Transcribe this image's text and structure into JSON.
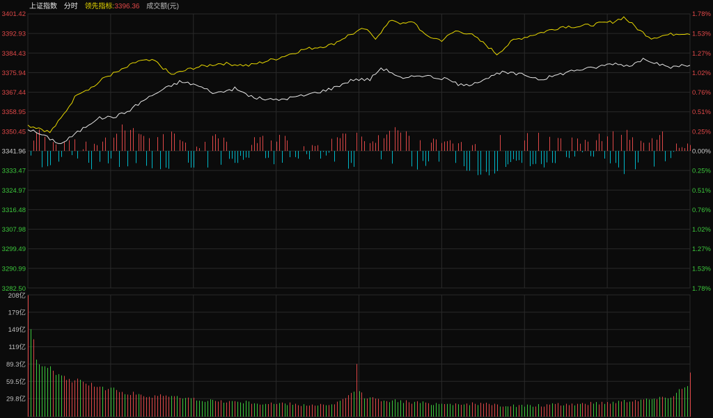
{
  "header": {
    "index_name": "上证指数",
    "period": "分时",
    "indicator_label": "领先指标:",
    "indicator_value": "3396.36",
    "volume_label": "成交额(元)"
  },
  "colors": {
    "background": "#0b0b0b",
    "grid": "#2a2a2a",
    "up": "#e04848",
    "down": "#00b8c8",
    "neutral": "#cfcfcf",
    "index_line": "#e8e8e8",
    "lead_line": "#e8d800",
    "volume_up": "#e04848",
    "volume_down": "#3cc83c",
    "text_gray": "#bdbdbd"
  },
  "chart_data": [
    {
      "type": "line",
      "title": "上证指数 分时",
      "baseline": 3341.96,
      "ylim": [
        3282.5,
        3401.42
      ],
      "y_ticks_left": [
        "3401.42",
        "3392.93",
        "3384.43",
        "3375.94",
        "3367.44",
        "3358.95",
        "3350.45",
        "3341.96",
        "3333.47",
        "3324.97",
        "3316.48",
        "3307.98",
        "3299.49",
        "3290.99",
        "3282.50"
      ],
      "y_ticks_right": [
        "1.78%",
        "1.53%",
        "1.27%",
        "1.02%",
        "0.76%",
        "0.51%",
        "0.25%",
        "0.00%",
        "0.25%",
        "0.51%",
        "0.76%",
        "1.02%",
        "1.27%",
        "1.53%",
        "1.78%"
      ],
      "n_points": 241,
      "series": [
        {
          "name": "上证指数",
          "keyframes": [
            [
              0,
              3351.5
            ],
            [
              5,
              3349
            ],
            [
              12,
              3345
            ],
            [
              18,
              3350
            ],
            [
              25,
              3356
            ],
            [
              32,
              3357
            ],
            [
              36,
              3359
            ],
            [
              42,
              3364
            ],
            [
              48,
              3368
            ],
            [
              55,
              3372
            ],
            [
              60,
              3371
            ],
            [
              68,
              3367
            ],
            [
              75,
              3369
            ],
            [
              82,
              3365
            ],
            [
              90,
              3364
            ],
            [
              100,
              3366
            ],
            [
              110,
              3369
            ],
            [
              118,
              3373
            ],
            [
              124,
              3373
            ],
            [
              128,
              3378
            ],
            [
              132,
              3376
            ],
            [
              136,
              3373
            ],
            [
              142,
              3375
            ],
            [
              152,
              3373
            ],
            [
              158,
              3370
            ],
            [
              165,
              3373
            ],
            [
              172,
              3376
            ],
            [
              180,
              3375
            ],
            [
              186,
              3373
            ],
            [
              192,
              3375
            ],
            [
              198,
              3377
            ],
            [
              205,
              3378
            ],
            [
              212,
              3380
            ],
            [
              218,
              3379
            ],
            [
              224,
              3382
            ],
            [
              228,
              3380
            ],
            [
              232,
              3378
            ],
            [
              236,
              3379
            ],
            [
              240,
              3379
            ]
          ]
        },
        {
          "name": "领先指标",
          "keyframes": [
            [
              0,
              3353
            ],
            [
              4,
              3352
            ],
            [
              8,
              3350
            ],
            [
              12,
              3356
            ],
            [
              18,
              3367
            ],
            [
              24,
              3370
            ],
            [
              28,
              3374
            ],
            [
              34,
              3377
            ],
            [
              40,
              3381
            ],
            [
              46,
              3381
            ],
            [
              52,
              3375
            ],
            [
              60,
              3378
            ],
            [
              70,
              3380
            ],
            [
              80,
              3379
            ],
            [
              90,
              3382
            ],
            [
              100,
              3386
            ],
            [
              110,
              3388
            ],
            [
              116,
              3392
            ],
            [
              122,
              3395
            ],
            [
              126,
              3391
            ],
            [
              132,
              3399
            ],
            [
              136,
              3397
            ],
            [
              140,
              3398
            ],
            [
              144,
              3392
            ],
            [
              150,
              3390
            ],
            [
              155,
              3394
            ],
            [
              160,
              3393
            ],
            [
              166,
              3388
            ],
            [
              170,
              3384
            ],
            [
              176,
              3390
            ],
            [
              182,
              3392
            ],
            [
              188,
              3394
            ],
            [
              194,
              3396
            ],
            [
              200,
              3396
            ],
            [
              206,
              3397
            ],
            [
              212,
              3398
            ],
            [
              216,
              3400
            ],
            [
              222,
              3394
            ],
            [
              226,
              3391
            ],
            [
              230,
              3392
            ],
            [
              236,
              3393
            ],
            [
              240,
              3393
            ]
          ]
        }
      ],
      "bars_up_keyframes": [
        [
          0,
          4
        ],
        [
          3,
          28
        ],
        [
          10,
          14
        ],
        [
          15,
          18
        ],
        [
          20,
          8
        ],
        [
          25,
          12
        ],
        [
          30,
          20
        ],
        [
          34,
          32
        ],
        [
          40,
          26
        ],
        [
          45,
          18
        ],
        [
          50,
          32
        ],
        [
          55,
          12
        ],
        [
          62,
          8
        ],
        [
          70,
          22
        ],
        [
          75,
          14
        ],
        [
          80,
          10
        ],
        [
          85,
          20
        ],
        [
          90,
          18
        ],
        [
          96,
          14
        ],
        [
          100,
          10
        ],
        [
          108,
          12
        ],
        [
          114,
          26
        ],
        [
          118,
          28
        ],
        [
          122,
          12
        ],
        [
          128,
          20
        ],
        [
          132,
          36
        ],
        [
          136,
          26
        ],
        [
          142,
          14
        ],
        [
          150,
          12
        ],
        [
          156,
          10
        ],
        [
          160,
          8
        ],
        [
          166,
          10
        ],
        [
          170,
          24
        ],
        [
          176,
          30
        ],
        [
          180,
          18
        ],
        [
          186,
          30
        ],
        [
          190,
          14
        ],
        [
          195,
          24
        ],
        [
          200,
          16
        ],
        [
          206,
          18
        ],
        [
          210,
          22
        ],
        [
          216,
          28
        ],
        [
          220,
          14
        ],
        [
          226,
          16
        ],
        [
          230,
          24
        ],
        [
          236,
          10
        ],
        [
          240,
          8
        ]
      ],
      "bars_down_keyframes": [
        [
          0,
          8
        ],
        [
          4,
          26
        ],
        [
          8,
          20
        ],
        [
          12,
          14
        ],
        [
          18,
          10
        ],
        [
          22,
          22
        ],
        [
          26,
          18
        ],
        [
          30,
          10
        ],
        [
          34,
          22
        ],
        [
          40,
          14
        ],
        [
          44,
          24
        ],
        [
          48,
          32
        ],
        [
          52,
          26
        ],
        [
          58,
          22
        ],
        [
          62,
          18
        ],
        [
          66,
          22
        ],
        [
          70,
          14
        ],
        [
          76,
          12
        ],
        [
          82,
          16
        ],
        [
          88,
          14
        ],
        [
          96,
          12
        ],
        [
          102,
          8
        ],
        [
          108,
          6
        ],
        [
          114,
          18
        ],
        [
          118,
          24
        ],
        [
          122,
          36
        ],
        [
          128,
          12
        ],
        [
          132,
          14
        ],
        [
          136,
          20
        ],
        [
          140,
          28
        ],
        [
          144,
          16
        ],
        [
          150,
          18
        ],
        [
          156,
          22
        ],
        [
          160,
          28
        ],
        [
          164,
          30
        ],
        [
          168,
          42
        ],
        [
          172,
          18
        ],
        [
          178,
          12
        ],
        [
          184,
          20
        ],
        [
          190,
          16
        ],
        [
          194,
          10
        ],
        [
          200,
          8
        ],
        [
          206,
          6
        ],
        [
          212,
          18
        ],
        [
          216,
          30
        ],
        [
          220,
          22
        ],
        [
          224,
          12
        ],
        [
          228,
          18
        ],
        [
          232,
          8
        ],
        [
          236,
          6
        ],
        [
          240,
          10
        ]
      ]
    },
    {
      "type": "bar",
      "title": "成交额(元)",
      "ylim": [
        0,
        208
      ],
      "y_ticks": [
        "208亿",
        "179亿",
        "149亿",
        "119亿",
        "89.3亿",
        "59.5亿",
        "29.8亿"
      ],
      "volume_keyframes": [
        [
          0,
          208
        ],
        [
          1,
          150
        ],
        [
          2,
          130
        ],
        [
          3,
          95
        ],
        [
          4,
          92
        ],
        [
          6,
          86
        ],
        [
          8,
          84
        ],
        [
          10,
          72
        ],
        [
          12,
          70
        ],
        [
          14,
          64
        ],
        [
          16,
          60
        ],
        [
          18,
          62
        ],
        [
          20,
          60
        ],
        [
          22,
          56
        ],
        [
          24,
          54
        ],
        [
          26,
          50
        ],
        [
          28,
          48
        ],
        [
          30,
          52
        ],
        [
          32,
          46
        ],
        [
          34,
          42
        ],
        [
          36,
          38
        ],
        [
          38,
          40
        ],
        [
          40,
          36
        ],
        [
          44,
          34
        ],
        [
          48,
          38
        ],
        [
          52,
          34
        ],
        [
          56,
          32
        ],
        [
          60,
          30
        ],
        [
          64,
          28
        ],
        [
          70,
          26
        ],
        [
          74,
          26
        ],
        [
          80,
          24
        ],
        [
          86,
          22
        ],
        [
          92,
          22
        ],
        [
          100,
          20
        ],
        [
          106,
          20
        ],
        [
          110,
          18
        ],
        [
          112,
          24
        ],
        [
          114,
          30
        ],
        [
          118,
          40
        ],
        [
          119,
          92
        ],
        [
          120,
          44
        ],
        [
          122,
          34
        ],
        [
          126,
          30
        ],
        [
          130,
          28
        ],
        [
          136,
          26
        ],
        [
          140,
          24
        ],
        [
          150,
          22
        ],
        [
          160,
          22
        ],
        [
          170,
          20
        ],
        [
          180,
          18
        ],
        [
          190,
          20
        ],
        [
          200,
          22
        ],
        [
          210,
          24
        ],
        [
          218,
          28
        ],
        [
          226,
          30
        ],
        [
          230,
          32
        ],
        [
          234,
          36
        ],
        [
          236,
          46
        ],
        [
          238,
          50
        ],
        [
          239,
          55
        ],
        [
          240,
          78
        ]
      ]
    }
  ]
}
